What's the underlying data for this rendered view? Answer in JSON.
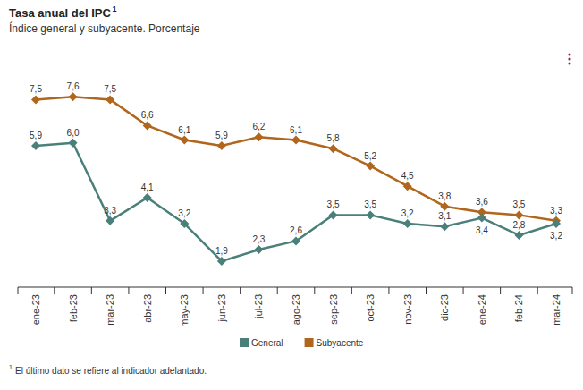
{
  "chart_data": {
    "type": "line",
    "title": "Tasa anual del IPC",
    "title_marker": "1",
    "subtitle": "Índice general y subyacente. Porcentaje",
    "footnote": {
      "marker": "1",
      "text": "El último dato se refiere al indicador adelantado."
    },
    "categories": [
      "ene-23",
      "feb-23",
      "mar-23",
      "abr-23",
      "may-23",
      "jun-23",
      "jul-23",
      "ago-23",
      "sep-23",
      "oct-23",
      "nov-23",
      "dic-23",
      "ene-24",
      "feb-24",
      "mar-24"
    ],
    "series": [
      {
        "name": "General",
        "color": "#4a7f7a",
        "marker": "diamond",
        "values": [
          5.9,
          6.0,
          3.3,
          4.1,
          3.2,
          1.9,
          2.3,
          2.6,
          3.5,
          3.5,
          3.2,
          3.1,
          3.4,
          2.8,
          3.2
        ],
        "value_labels": [
          "5,9",
          "6,0",
          "3,3",
          "4,1",
          "3,2",
          "1,9",
          "2,3",
          "2,6",
          "3,5",
          "3,5",
          "3,2",
          "3,1",
          "3,4",
          "2,8",
          "3,2"
        ]
      },
      {
        "name": "Subyacente",
        "color": "#b0661c",
        "marker": "diamond",
        "values": [
          7.5,
          7.6,
          7.5,
          6.6,
          6.1,
          5.9,
          6.2,
          6.1,
          5.8,
          5.2,
          4.5,
          3.8,
          3.6,
          3.5,
          3.3
        ],
        "value_labels": [
          "7,5",
          "7,6",
          "7,5",
          "6,6",
          "6,1",
          "5,9",
          "6,2",
          "6,1",
          "5,8",
          "5,2",
          "4,5",
          "3,8",
          "3,6",
          "3,5",
          "3,3"
        ]
      }
    ],
    "ylim": [
      1,
      9
    ],
    "tick_labels": "x",
    "grid": false,
    "legend": "bottom",
    "data_labels": true
  }
}
